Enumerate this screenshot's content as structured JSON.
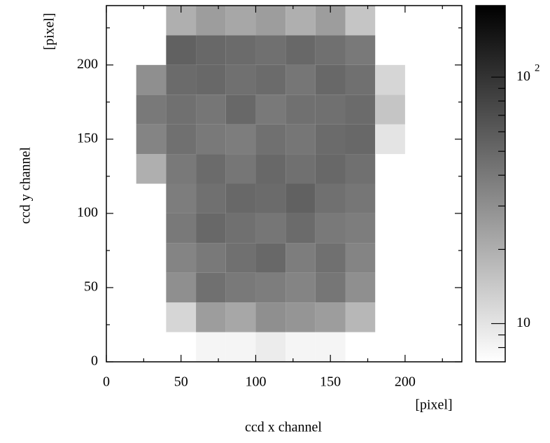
{
  "chart_data": {
    "type": "heatmap",
    "x_label": "ccd  x channel",
    "y_label": "ccd  y channel",
    "x_unit": "[pixel]",
    "y_unit": "[pixel]",
    "xlim": [
      0,
      238
    ],
    "ylim": [
      0,
      240
    ],
    "xticks": [
      0,
      50,
      100,
      150,
      200
    ],
    "yticks": [
      0,
      50,
      100,
      150,
      200
    ],
    "xticks_minor": [
      25,
      75,
      125,
      175,
      225
    ],
    "yticks_minor": [
      25,
      75,
      125,
      175,
      225
    ],
    "x_edges": [
      0,
      20,
      40,
      60,
      80,
      100,
      120,
      140,
      160,
      180,
      200
    ],
    "y_edges": [
      0,
      20,
      40,
      60,
      80,
      100,
      120,
      140,
      160,
      180,
      200,
      220,
      240
    ],
    "values": [
      [
        null,
        null,
        null,
        8,
        8,
        9,
        8,
        8,
        null,
        null
      ],
      [
        null,
        null,
        12,
        25,
        22,
        30,
        28,
        25,
        18,
        null
      ],
      [
        null,
        null,
        30,
        45,
        40,
        38,
        35,
        42,
        30,
        null
      ],
      [
        null,
        null,
        35,
        40,
        45,
        50,
        38,
        45,
        35,
        null
      ],
      [
        null,
        null,
        40,
        50,
        45,
        42,
        48,
        40,
        38,
        null
      ],
      [
        null,
        null,
        38,
        45,
        50,
        48,
        55,
        45,
        42,
        null
      ],
      [
        null,
        20,
        40,
        48,
        42,
        50,
        45,
        50,
        45,
        null
      ],
      [
        null,
        35,
        45,
        40,
        38,
        45,
        42,
        48,
        50,
        10
      ],
      [
        null,
        40,
        45,
        42,
        50,
        40,
        45,
        45,
        48,
        15
      ],
      [
        null,
        30,
        48,
        50,
        45,
        48,
        42,
        50,
        45,
        12
      ],
      [
        null,
        null,
        55,
        50,
        48,
        45,
        50,
        45,
        40,
        null
      ],
      [
        null,
        null,
        20,
        25,
        22,
        25,
        20,
        25,
        15,
        null
      ]
    ],
    "colormap": [
      "#ffffff",
      "#000000"
    ],
    "color_log": true,
    "clim": [
      7,
      195
    ],
    "cticks": [
      {
        "value": 10,
        "label": "10"
      },
      {
        "value": 100,
        "label": "10",
        "exponent": "2"
      }
    ],
    "cticks_minor": [
      8,
      9,
      20,
      30,
      40,
      50,
      60,
      70,
      80,
      90
    ]
  }
}
